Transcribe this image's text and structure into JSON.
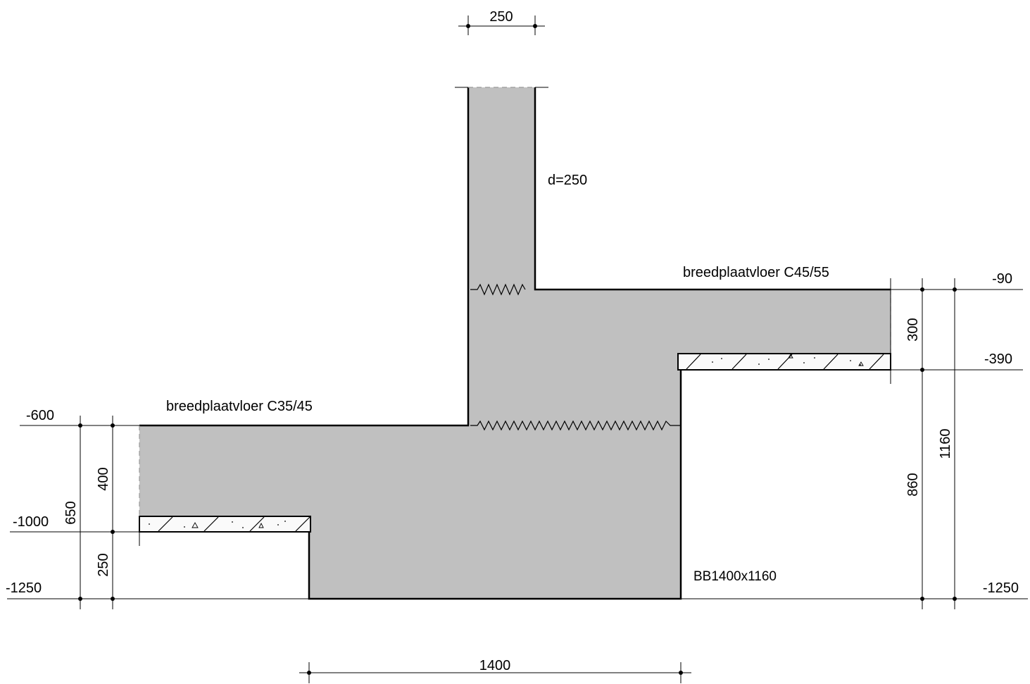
{
  "labels": {
    "wall_thickness": "d=250",
    "upper_slab": "breedplaatvloer C45/55",
    "lower_slab": "breedplaatvloer C35/45",
    "beam": "BB1400x1160"
  },
  "dimensions": {
    "top_width": "250",
    "bottom_width": "1400",
    "right_300": "300",
    "right_860": "860",
    "right_1160": "1160",
    "left_400": "400",
    "left_250": "250",
    "left_650": "650"
  },
  "levels": {
    "right_top": "-90",
    "right_mid": "-390",
    "right_bottom": "-1250",
    "left_top": "-600",
    "left_mid": "-1000",
    "left_bottom": "-1250"
  },
  "colors": {
    "concrete_fill": "#c0c0c0",
    "line": "#000000"
  }
}
